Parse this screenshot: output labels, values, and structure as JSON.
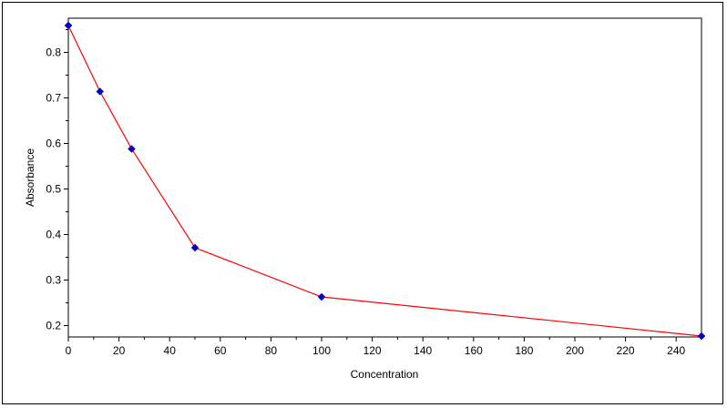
{
  "chart_data": {
    "type": "line",
    "title": "",
    "xlabel": "Concentration",
    "ylabel": "Absorbance",
    "xlim": [
      0,
      250
    ],
    "ylim": [
      0.175,
      0.875
    ],
    "xticks": [
      0,
      20,
      40,
      60,
      80,
      100,
      120,
      140,
      160,
      180,
      200,
      220,
      240
    ],
    "yticks": [
      0.2,
      0.3,
      0.4,
      0.5,
      0.6,
      0.7,
      0.8
    ],
    "xtick_labels": [
      "0",
      "20",
      "40",
      "60",
      "80",
      "100",
      "120",
      "140",
      "160",
      "180",
      "200",
      "220",
      "240"
    ],
    "ytick_labels": [
      "0.2",
      "0.3",
      "0.4",
      "0.5",
      "0.6",
      "0.7",
      "0.8"
    ],
    "grid": false,
    "series": [
      {
        "x": [
          0,
          12.5,
          25,
          50,
          100,
          250
        ],
        "y": [
          0.859,
          0.714,
          0.588,
          0.371,
          0.263,
          0.177
        ],
        "line_color": "#ff0000",
        "marker_color": "#0000cc",
        "marker": "diamond"
      }
    ]
  }
}
